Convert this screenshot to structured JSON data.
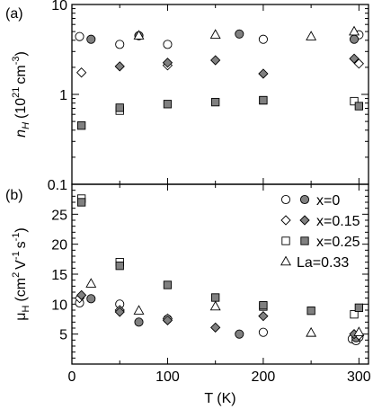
{
  "chart_data": [
    {
      "panel_label": "(a)",
      "type": "scatter",
      "title": "",
      "xlabel": "",
      "ylabel_parts": [
        "n",
        "H",
        "(10",
        "21",
        "cm",
        "-3",
        ")"
      ],
      "yscale": "log",
      "xlim": [
        0,
        310
      ],
      "ylim": [
        0.1,
        10
      ],
      "xticks": [
        0,
        100,
        200,
        300
      ],
      "yticks": [
        {
          "value": 0.1,
          "label": "0.1"
        },
        {
          "value": 1,
          "label": "1"
        },
        {
          "value": 10,
          "label": "10"
        }
      ],
      "series": [
        {
          "name": "x=0",
          "marker": "circle",
          "filled": false,
          "points": [
            [
              8,
              4.4
            ],
            [
              50,
              3.6
            ],
            [
              100,
              3.6
            ],
            [
              200,
              4.1
            ],
            [
              300,
              4.6
            ]
          ]
        },
        {
          "name": "x=0",
          "marker": "circle",
          "filled": true,
          "points": [
            [
              20,
              4.1
            ],
            [
              70,
              4.5
            ],
            [
              175,
              4.7
            ],
            [
              295,
              4.1
            ]
          ]
        },
        {
          "name": "x=0.15",
          "marker": "diamond",
          "filled": false,
          "points": [
            [
              10,
              1.75
            ],
            [
              100,
              2.1
            ],
            [
              300,
              2.2
            ]
          ]
        },
        {
          "name": "x=0.15",
          "marker": "diamond",
          "filled": true,
          "points": [
            [
              50,
              2.05
            ],
            [
              100,
              2.25
            ],
            [
              150,
              2.4
            ],
            [
              200,
              1.7
            ],
            [
              295,
              2.5
            ]
          ]
        },
        {
          "name": "x=0.25",
          "marker": "square",
          "filled": false,
          "points": [
            [
              50,
              0.66
            ],
            [
              200,
              0.86
            ],
            [
              295,
              0.84
            ]
          ]
        },
        {
          "name": "x=0.25",
          "marker": "square",
          "filled": true,
          "points": [
            [
              10,
              0.45
            ],
            [
              50,
              0.71
            ],
            [
              100,
              0.78
            ],
            [
              150,
              0.82
            ],
            [
              200,
              0.86
            ],
            [
              300,
              0.74
            ]
          ]
        },
        {
          "name": "La=0.33",
          "marker": "triangle",
          "filled": false,
          "points": [
            [
              70,
              4.5
            ],
            [
              150,
              4.6
            ],
            [
              250,
              4.4
            ],
            [
              295,
              5.0
            ]
          ]
        }
      ]
    },
    {
      "panel_label": "(b)",
      "type": "scatter",
      "title": "",
      "xlabel": "T (K)",
      "ylabel_parts": [
        "μ",
        "H",
        "(cm",
        "2",
        "V",
        "-1",
        "s",
        "-1",
        ")"
      ],
      "yscale": "linear",
      "xlim": [
        0,
        310
      ],
      "ylim": [
        0,
        30
      ],
      "xticks": [
        0,
        100,
        200,
        300
      ],
      "yticks": [
        {
          "value": 5,
          "label": "5"
        },
        {
          "value": 10,
          "label": "10"
        },
        {
          "value": 15,
          "label": "15"
        },
        {
          "value": 20,
          "label": "20"
        },
        {
          "value": 25,
          "label": "25"
        }
      ],
      "legend_placement": "top-right",
      "series": [
        {
          "name": "x=0",
          "marker": "circle",
          "filled": false,
          "points": [
            [
              8,
              10.2
            ],
            [
              50,
              10.0
            ],
            [
              100,
              7.5
            ],
            [
              200,
              5.3
            ],
            [
              293,
              4.2
            ],
            [
              297,
              3.9
            ],
            [
              300,
              4.5
            ]
          ]
        },
        {
          "name": "x=0",
          "marker": "circle",
          "filled": true,
          "points": [
            [
              20,
              10.9
            ],
            [
              70,
              7.0
            ],
            [
              175,
              5.0
            ],
            [
              297,
              4.4
            ]
          ]
        },
        {
          "name": "x=0.15",
          "marker": "diamond",
          "filled": false,
          "points": [
            [
              8,
              11.0
            ],
            [
              50,
              9.0
            ],
            [
              100,
              7.6
            ],
            [
              300,
              4.8
            ]
          ]
        },
        {
          "name": "x=0.15",
          "marker": "diamond",
          "filled": true,
          "points": [
            [
              10,
              11.5
            ],
            [
              50,
              8.7
            ],
            [
              100,
              7.3
            ],
            [
              150,
              6.1
            ],
            [
              200,
              8.0
            ],
            [
              295,
              5.0
            ]
          ]
        },
        {
          "name": "x=0.25",
          "marker": "square",
          "filled": false,
          "points": [
            [
              10,
              27.6
            ],
            [
              50,
              17.0
            ],
            [
              200,
              9.6
            ],
            [
              295,
              8.3
            ]
          ]
        },
        {
          "name": "x=0.25",
          "marker": "square",
          "filled": true,
          "points": [
            [
              10,
              27.0
            ],
            [
              50,
              16.4
            ],
            [
              100,
              13.2
            ],
            [
              150,
              11.1
            ],
            [
              200,
              9.8
            ],
            [
              250,
              8.9
            ],
            [
              300,
              9.4
            ]
          ]
        },
        {
          "name": "La=0.33",
          "marker": "triangle",
          "filled": false,
          "points": [
            [
              20,
              13.4
            ],
            [
              70,
              8.9
            ],
            [
              150,
              9.6
            ],
            [
              250,
              5.2
            ],
            [
              300,
              5.3
            ]
          ]
        }
      ],
      "legend": [
        {
          "label": "x=0",
          "marker": "circle"
        },
        {
          "label": "x=0.15",
          "marker": "diamond"
        },
        {
          "label": "x=0.25",
          "marker": "square"
        },
        {
          "label": "La=0.33",
          "marker": "triangle"
        }
      ]
    }
  ],
  "colors": {
    "filled_marker": "#808080",
    "open_marker": "#ffffff",
    "outline": "#000000"
  }
}
